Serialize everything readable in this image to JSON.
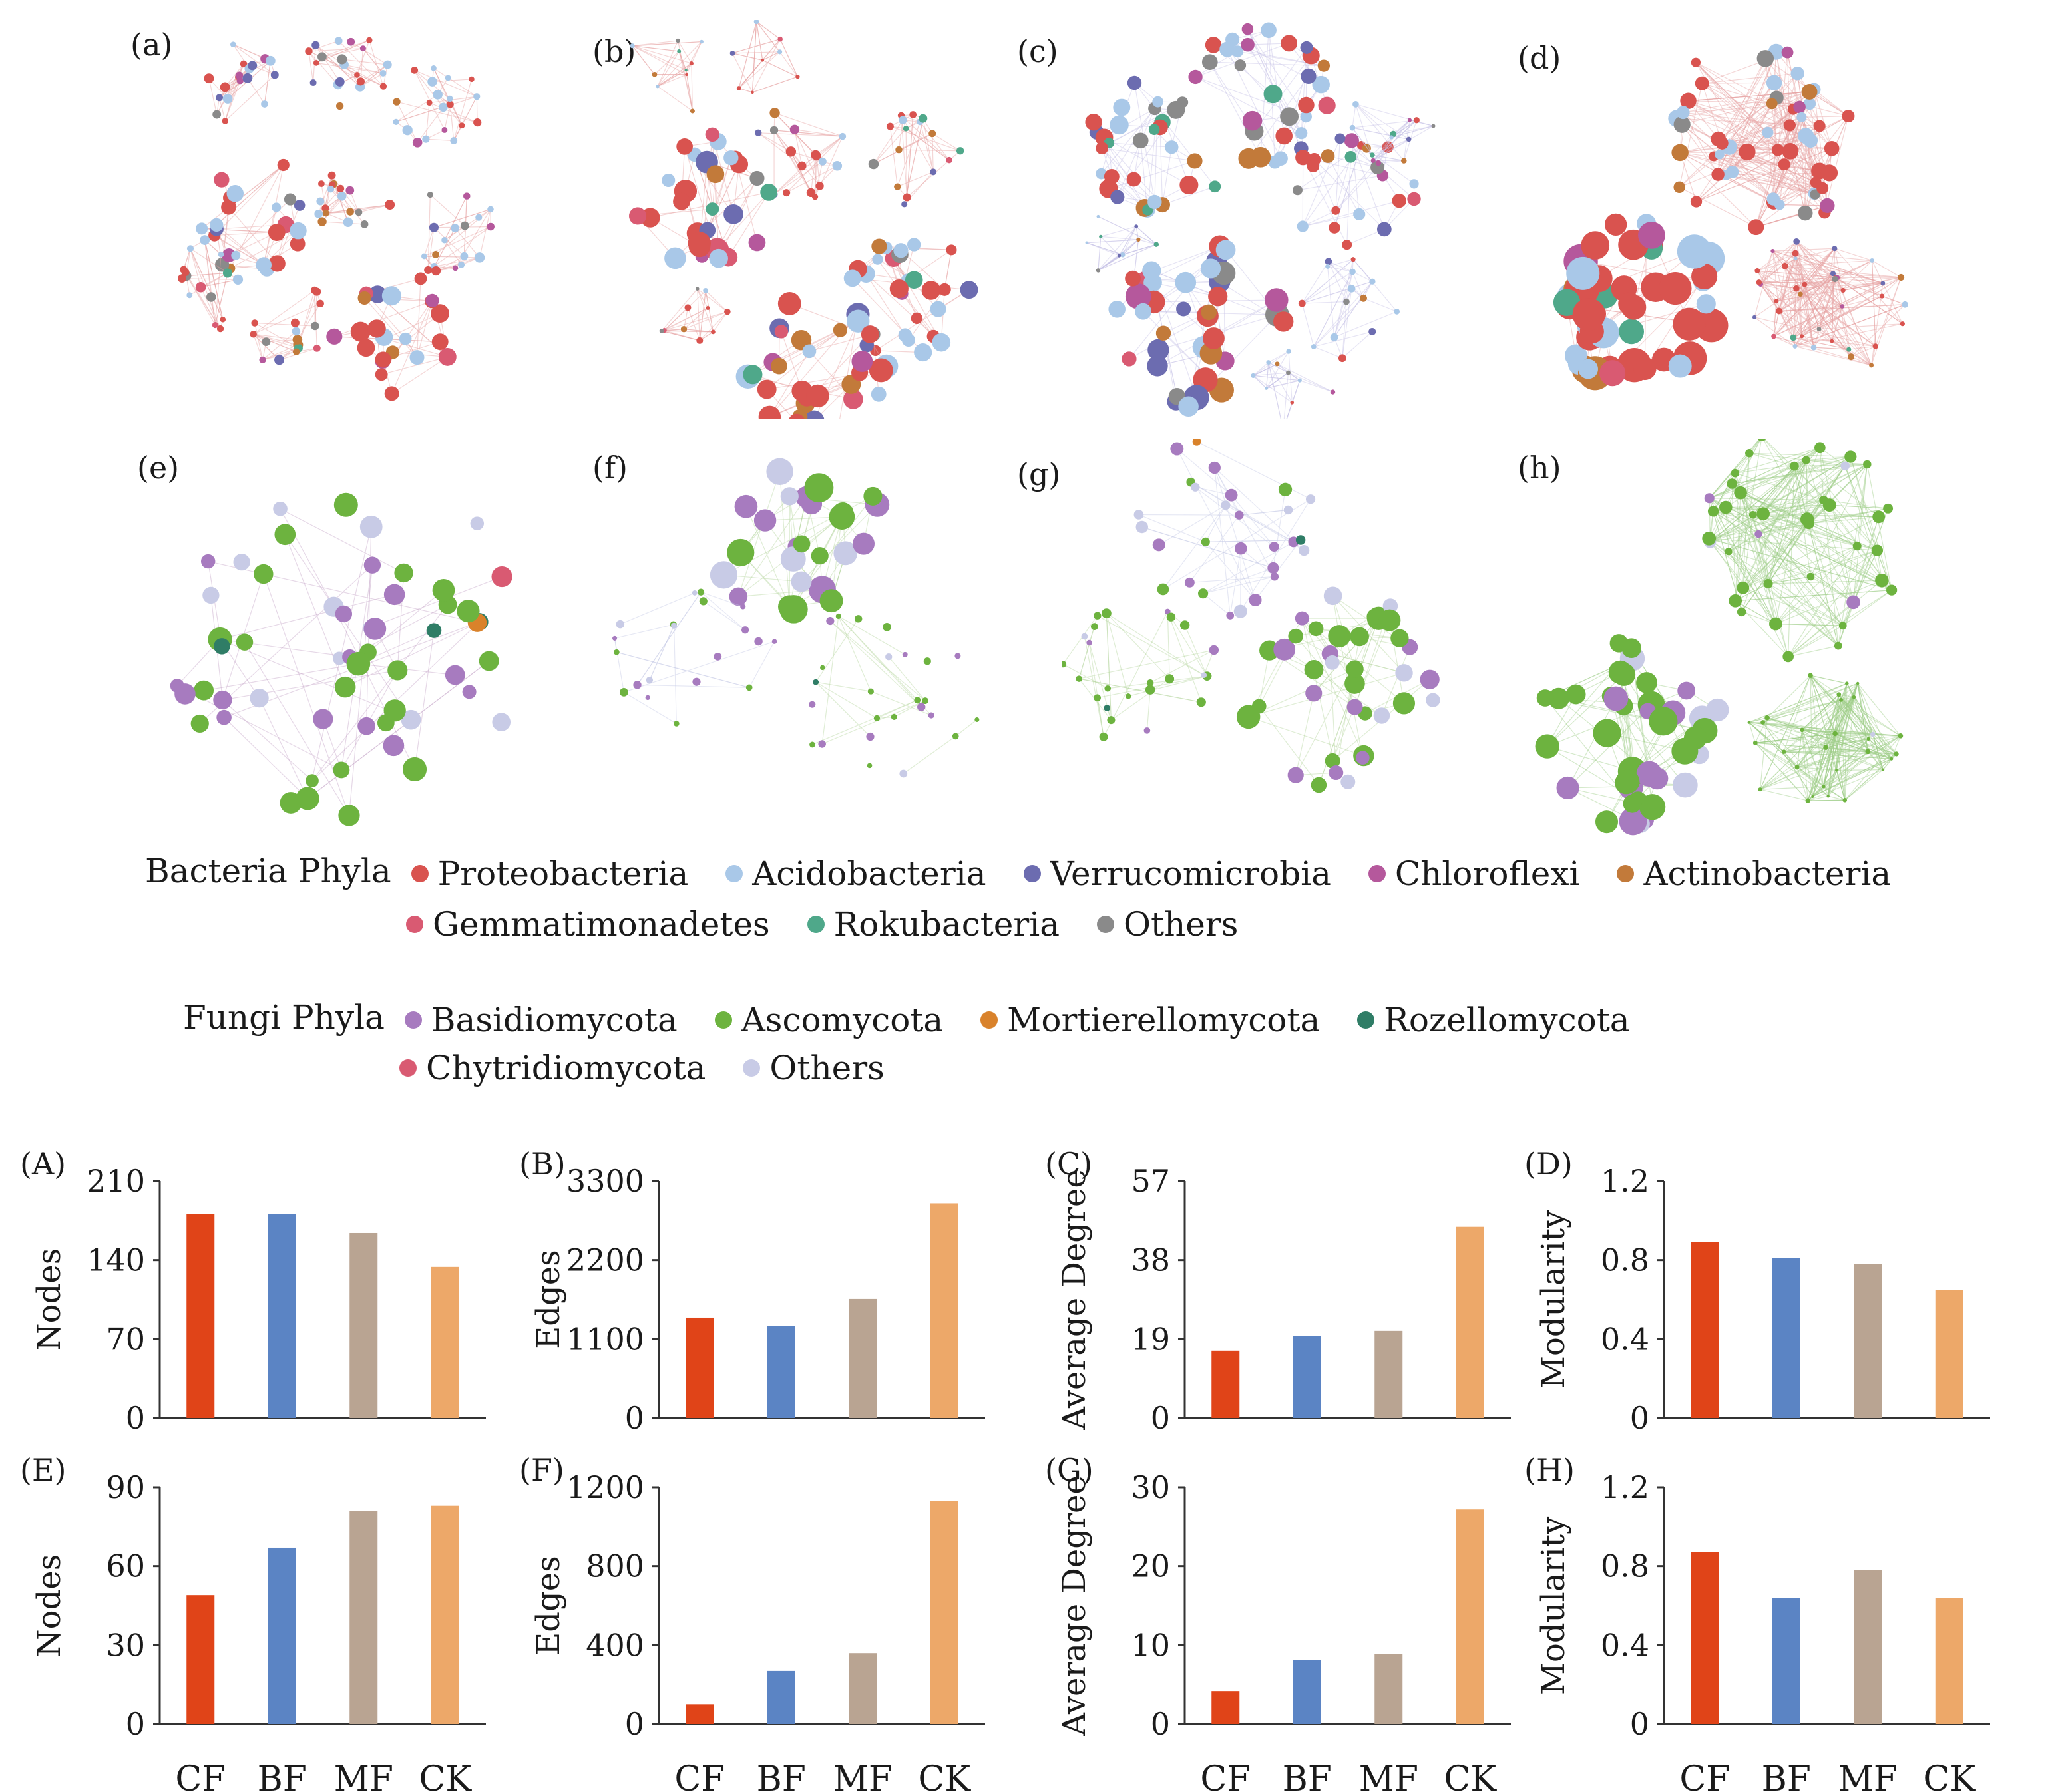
{
  "network_panels": [
    {
      "label": "(a)",
      "kind": "bacteria",
      "modules": 8
    },
    {
      "label": "(b)",
      "kind": "bacteria",
      "modules": 7
    },
    {
      "label": "(c)",
      "kind": "bacteria",
      "modules": 7
    },
    {
      "label": "(d)",
      "kind": "bacteria",
      "modules": 3
    },
    {
      "label": "(e)",
      "kind": "fungi",
      "modules": 1
    },
    {
      "label": "(f)",
      "kind": "fungi",
      "modules": 3
    },
    {
      "label": "(g)",
      "kind": "fungi",
      "modules": 3
    },
    {
      "label": "(h)",
      "kind": "fungi",
      "modules": 3
    }
  ],
  "legend": {
    "bacteria": {
      "title": "Bacteria Phyla",
      "items": [
        {
          "name": "Proteobacteria",
          "color": "#d9534f"
        },
        {
          "name": "Acidobacteria",
          "color": "#a9c8e8"
        },
        {
          "name": "Verrucomicrobia",
          "color": "#6c6cb0"
        },
        {
          "name": "Chloroflexi",
          "color": "#b5589c"
        },
        {
          "name": "Actinobacteria",
          "color": "#c27a3a"
        },
        {
          "name": "Gemmatimonadetes",
          "color": "#d95a72"
        },
        {
          "name": "Rokubacteria",
          "color": "#4fa88a"
        },
        {
          "name": "Others",
          "color": "#8a8a8a"
        }
      ]
    },
    "fungi": {
      "title": "Fungi Phyla",
      "items": [
        {
          "name": "Basidiomycota",
          "color": "#a77bbf"
        },
        {
          "name": "Ascomycota",
          "color": "#6db33f"
        },
        {
          "name": "Mortierellomycota",
          "color": "#d9822b"
        },
        {
          "name": "Rozellomycota",
          "color": "#2f7d66"
        },
        {
          "name": "Chytridiomycota",
          "color": "#d95a72"
        },
        {
          "name": "Others",
          "color": "#c8cbe6"
        }
      ]
    }
  },
  "chart_data": [
    {
      "type": "bar",
      "panel": "(A)",
      "ylabel": "Nodes",
      "categories": [
        "CF",
        "BF",
        "MF",
        "CK"
      ],
      "values": [
        181,
        181,
        164,
        134
      ],
      "ylim": [
        0,
        210
      ],
      "yticks": [
        "0",
        "70",
        "140",
        "210"
      ]
    },
    {
      "type": "bar",
      "panel": "(B)",
      "ylabel": "Edges",
      "categories": [
        "CF",
        "BF",
        "MF",
        "CK"
      ],
      "values": [
        1400,
        1280,
        1660,
        2990
      ],
      "ylim": [
        0,
        3300
      ],
      "yticks": [
        "0",
        "1100",
        "2200",
        "3300"
      ]
    },
    {
      "type": "bar",
      "panel": "(C)",
      "ylabel": "Average Degree",
      "categories": [
        "CF",
        "BF",
        "MF",
        "CK"
      ],
      "values": [
        16.2,
        19.8,
        21,
        46
      ],
      "ylim": [
        0,
        57
      ],
      "yticks": [
        "0",
        "19",
        "38",
        "57"
      ]
    },
    {
      "type": "bar",
      "panel": "(D)",
      "ylabel": "Modularity",
      "categories": [
        "CF",
        "BF",
        "MF",
        "CK"
      ],
      "values": [
        0.89,
        0.81,
        0.78,
        0.65
      ],
      "ylim": [
        0,
        1.2
      ],
      "yticks": [
        "0",
        "0.4",
        "0.8",
        "1.2"
      ]
    },
    {
      "type": "bar",
      "panel": "(E)",
      "ylabel": "Nodes",
      "categories": [
        "CF",
        "BF",
        "MF",
        "CK"
      ],
      "values": [
        49,
        67,
        81,
        83
      ],
      "ylim": [
        0,
        90
      ],
      "yticks": [
        "0",
        "30",
        "60",
        "90"
      ]
    },
    {
      "type": "bar",
      "panel": "(F)",
      "ylabel": "Edges",
      "categories": [
        "CF",
        "BF",
        "MF",
        "CK"
      ],
      "values": [
        100,
        270,
        360,
        1130
      ],
      "ylim": [
        0,
        1200
      ],
      "yticks": [
        "0",
        "400",
        "800",
        "1200"
      ]
    },
    {
      "type": "bar",
      "panel": "(G)",
      "ylabel": "Average Degree",
      "categories": [
        "CF",
        "BF",
        "MF",
        "CK"
      ],
      "values": [
        4.2,
        8.1,
        8.9,
        27.2
      ],
      "ylim": [
        0,
        30
      ],
      "yticks": [
        "0",
        "10",
        "20",
        "30"
      ]
    },
    {
      "type": "bar",
      "panel": "(H)",
      "ylabel": "Modularity",
      "categories": [
        "CF",
        "BF",
        "MF",
        "CK"
      ],
      "values": [
        0.87,
        0.64,
        0.78,
        0.64
      ],
      "ylim": [
        0,
        1.2
      ],
      "yticks": [
        "0",
        "0.4",
        "0.8",
        "1.2"
      ]
    }
  ],
  "bar_colors": [
    "#e04418",
    "#5b84c4",
    "#b9a492",
    "#eda869"
  ]
}
